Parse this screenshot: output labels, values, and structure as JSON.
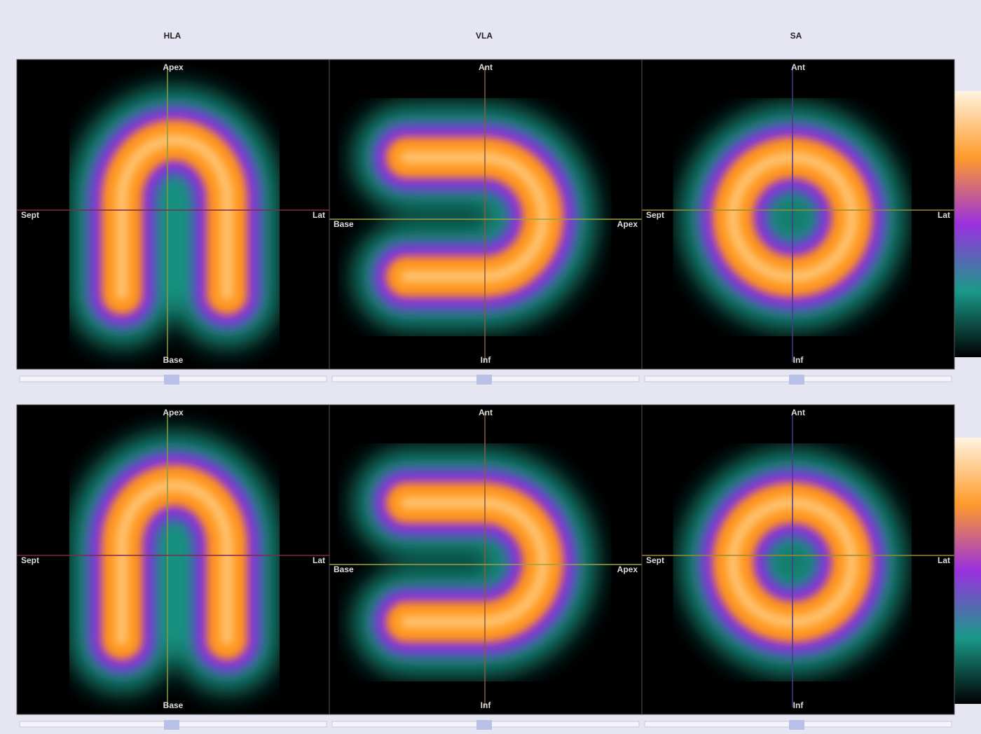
{
  "header": {
    "columns": [
      "HLA",
      "VLA",
      "SA"
    ]
  },
  "rows": [
    {
      "panels": [
        {
          "top": "Apex",
          "left": "Sept",
          "right": "Lat",
          "bottom": "Base"
        },
        {
          "top": "Ant",
          "left": "Base",
          "right": "Apex",
          "bottom": "Inf"
        },
        {
          "top": "Ant",
          "left": "Sept",
          "right": "Lat",
          "bottom": "Inf"
        }
      ]
    },
    {
      "panels": [
        {
          "top": "Apex",
          "left": "Sept",
          "right": "Lat",
          "bottom": "Base"
        },
        {
          "top": "Ant",
          "left": "Base",
          "right": "Apex",
          "bottom": "Inf"
        },
        {
          "top": "Ant",
          "left": "Sept",
          "right": "Lat",
          "bottom": "Inf"
        }
      ]
    }
  ]
}
